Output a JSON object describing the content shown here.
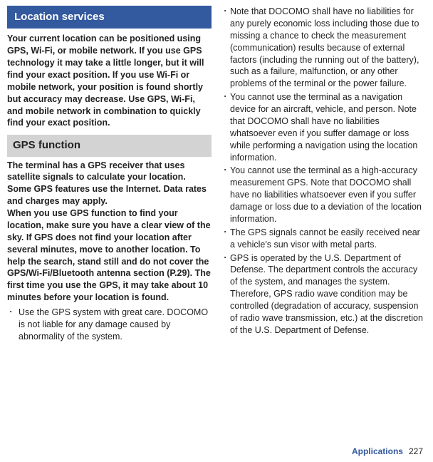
{
  "colors": {
    "heading_bg": "#33599e",
    "subheading_bg": "#d3d3d3",
    "text": "#222222",
    "accent": "#33599e",
    "page_bg": "#ffffff"
  },
  "heading1": "Location services",
  "intro": "Your current location can be positioned using GPS, Wi-Fi, or mobile network. If you use GPS technology it may take a little longer, but it will find your exact position. If you use Wi-Fi or mobile network, your position is found shortly but accuracy may decrease. Use GPS, Wi-Fi, and mobile network in combination to quickly find your exact position.",
  "heading2": "GPS function",
  "gps_body": "The terminal has a GPS receiver that uses satellite signals to calculate your location. Some GPS features use the Internet. Data rates and charges may apply.\nWhen you use GPS function to find your location, make sure you have a clear view of the sky. If GPS does not find your location after several minutes, move to another location. To help the search, stand still and do not cover the GPS/Wi-Fi/Bluetooth antenna section (P.29). The first time you use the GPS, it may take about 10 minutes before your location is found.",
  "b1": "Use the GPS system with great care. DOCOMO is not liable for any damage caused by abnormality of the system.",
  "b2": "Note that DOCOMO shall have no liabilities for any purely economic loss including those due to missing a chance to check the measurement (communication) results because of external factors (including the running out of the battery), such as a failure, malfunction, or any other problems of the terminal or the power failure.",
  "b3": "You cannot use the terminal as a navigation device for an aircraft, vehicle, and person. Note that DOCOMO shall have no liabilities whatsoever even if you suffer damage or loss while performing a navigation using the location information.",
  "b4": "You cannot use the terminal as a high-accuracy measurement GPS. Note that DOCOMO shall have no liabilities whatsoever even if you suffer damage or loss due to a deviation of the location information.",
  "b5": "The GPS signals cannot be easily received near a vehicle's sun visor with metal parts.",
  "b6": "GPS is operated by the U.S. Department of Defense. The department controls the accuracy of the system, and manages the system. Therefore, GPS radio wave condition may be controlled (degradation of accuracy, suspension of radio wave transmission, etc.) at the discretion of the U.S. Department of Defense.",
  "footer_label": "Applications",
  "page_num": "227",
  "bullet_char": "･"
}
